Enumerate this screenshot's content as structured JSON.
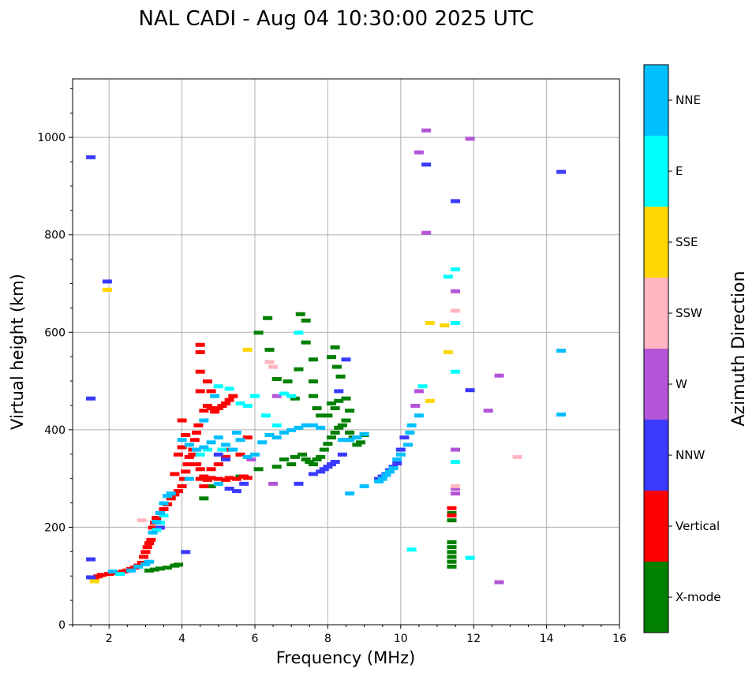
{
  "chart_data": {
    "type": "scatter",
    "title": "NAL CADI - Aug 04 10:30:00 2025 UTC",
    "xlabel": "Frequency (MHz)",
    "ylabel": "Virtual height (km)",
    "xlim": [
      1,
      16
    ],
    "ylim": [
      0,
      1120
    ],
    "xticks": [
      2,
      4,
      6,
      8,
      10,
      12,
      14,
      16
    ],
    "yticks": [
      0,
      200,
      400,
      600,
      800,
      1000
    ],
    "grid": true,
    "colorbar": {
      "title": "Azimuth Direction",
      "categories": [
        {
          "name": "X-mode",
          "color": "#008000"
        },
        {
          "name": "Vertical",
          "color": "#ff0000"
        },
        {
          "name": "NNW",
          "color": "#3a3aff"
        },
        {
          "name": "W",
          "color": "#b455d8"
        },
        {
          "name": "SSW",
          "color": "#ffb6c1"
        },
        {
          "name": "SSE",
          "color": "#ffd700"
        },
        {
          "name": "E",
          "color": "#00ffff"
        },
        {
          "name": "NNE",
          "color": "#00bfff"
        }
      ]
    },
    "series": [
      {
        "name": "X-mode",
        "points": [
          [
            3.1,
            112
          ],
          [
            3.25,
            114
          ],
          [
            3.4,
            116
          ],
          [
            3.6,
            118
          ],
          [
            3.8,
            122
          ],
          [
            3.9,
            124
          ],
          [
            4.6,
            260
          ],
          [
            4.8,
            285
          ],
          [
            5.6,
            305
          ],
          [
            6.1,
            320
          ],
          [
            6.35,
            630
          ],
          [
            6.1,
            600
          ],
          [
            6.4,
            565
          ],
          [
            6.6,
            505
          ],
          [
            6.9,
            500
          ],
          [
            7.1,
            465
          ],
          [
            7.2,
            525
          ],
          [
            7.25,
            638
          ],
          [
            7.4,
            625
          ],
          [
            7.4,
            580
          ],
          [
            7.6,
            545
          ],
          [
            7.6,
            500
          ],
          [
            7.6,
            470
          ],
          [
            7.7,
            445
          ],
          [
            7.8,
            430
          ],
          [
            7.3,
            350
          ],
          [
            7.4,
            340
          ],
          [
            7.5,
            335
          ],
          [
            7.6,
            330
          ],
          [
            7.7,
            340
          ],
          [
            7.8,
            345
          ],
          [
            7.9,
            360
          ],
          [
            8.0,
            372
          ],
          [
            8.1,
            385
          ],
          [
            8.2,
            395
          ],
          [
            8.3,
            405
          ],
          [
            8.4,
            410
          ],
          [
            8.0,
            430
          ],
          [
            8.1,
            455
          ],
          [
            8.2,
            445
          ],
          [
            8.3,
            460
          ],
          [
            8.5,
            420
          ],
          [
            8.5,
            465
          ],
          [
            8.6,
            440
          ],
          [
            8.6,
            395
          ],
          [
            8.7,
            385
          ],
          [
            8.8,
            370
          ],
          [
            8.1,
            550
          ],
          [
            8.2,
            570
          ],
          [
            8.25,
            530
          ],
          [
            8.35,
            510
          ],
          [
            6.6,
            325
          ],
          [
            6.8,
            340
          ],
          [
            7.0,
            330
          ],
          [
            7.1,
            345
          ],
          [
            8.9,
            375
          ],
          [
            9.0,
            390
          ],
          [
            11.4,
            170
          ],
          [
            11.4,
            160
          ],
          [
            11.4,
            150
          ],
          [
            11.4,
            140
          ],
          [
            11.4,
            130
          ],
          [
            11.4,
            120
          ],
          [
            11.4,
            215
          ],
          [
            11.4,
            230
          ]
        ]
      },
      {
        "name": "Vertical",
        "points": [
          [
            1.6,
            95
          ],
          [
            1.7,
            100
          ],
          [
            1.8,
            103
          ],
          [
            2.0,
            105
          ],
          [
            2.1,
            107
          ],
          [
            2.3,
            108
          ],
          [
            2.4,
            110
          ],
          [
            2.5,
            112
          ],
          [
            2.6,
            115
          ],
          [
            2.7,
            118
          ],
          [
            2.8,
            122
          ],
          [
            2.9,
            128
          ],
          [
            2.95,
            140
          ],
          [
            3.0,
            150
          ],
          [
            3.05,
            160
          ],
          [
            3.1,
            168
          ],
          [
            3.15,
            175
          ],
          [
            3.2,
            200
          ],
          [
            3.25,
            210
          ],
          [
            3.3,
            220
          ],
          [
            3.4,
            230
          ],
          [
            3.5,
            238
          ],
          [
            3.6,
            248
          ],
          [
            3.7,
            260
          ],
          [
            3.8,
            268
          ],
          [
            3.9,
            275
          ],
          [
            4.0,
            285
          ],
          [
            4.05,
            300
          ],
          [
            4.1,
            315
          ],
          [
            4.15,
            330
          ],
          [
            4.2,
            345
          ],
          [
            4.3,
            360
          ],
          [
            4.35,
            380
          ],
          [
            4.4,
            395
          ],
          [
            4.45,
            410
          ],
          [
            4.0,
            420
          ],
          [
            3.8,
            310
          ],
          [
            3.9,
            350
          ],
          [
            4.0,
            365
          ],
          [
            4.1,
            390
          ],
          [
            4.5,
            300
          ],
          [
            4.6,
            305
          ],
          [
            4.7,
            298
          ],
          [
            4.8,
            302
          ],
          [
            5.0,
            300
          ],
          [
            5.2,
            298
          ],
          [
            5.3,
            302
          ],
          [
            5.5,
            300
          ],
          [
            5.7,
            305
          ],
          [
            5.8,
            302
          ],
          [
            4.6,
            440
          ],
          [
            4.7,
            450
          ],
          [
            4.8,
            445
          ],
          [
            4.9,
            438
          ],
          [
            5.0,
            445
          ],
          [
            5.1,
            450
          ],
          [
            5.2,
            455
          ],
          [
            5.3,
            462
          ],
          [
            5.4,
            470
          ],
          [
            4.5,
            480
          ],
          [
            4.5,
            520
          ],
          [
            4.5,
            560
          ],
          [
            4.5,
            575
          ],
          [
            4.7,
            500
          ],
          [
            4.8,
            480
          ],
          [
            4.3,
            350
          ],
          [
            4.4,
            330
          ],
          [
            4.6,
            285
          ],
          [
            5.6,
            350
          ],
          [
            5.8,
            385
          ],
          [
            4.5,
            320
          ],
          [
            4.8,
            320
          ],
          [
            5.0,
            330
          ],
          [
            5.2,
            345
          ],
          [
            5.3,
            360
          ],
          [
            11.4,
            240
          ],
          [
            11.4,
            225
          ]
        ]
      },
      {
        "name": "NNW",
        "points": [
          [
            1.5,
            960
          ],
          [
            1.5,
            465
          ],
          [
            1.5,
            135
          ],
          [
            1.5,
            98
          ],
          [
            1.95,
            705
          ],
          [
            3.4,
            200
          ],
          [
            4.1,
            150
          ],
          [
            5.0,
            350
          ],
          [
            5.2,
            340
          ],
          [
            5.3,
            280
          ],
          [
            5.5,
            275
          ],
          [
            5.7,
            290
          ],
          [
            7.6,
            310
          ],
          [
            7.8,
            315
          ],
          [
            7.9,
            320
          ],
          [
            8.0,
            325
          ],
          [
            8.1,
            330
          ],
          [
            8.2,
            335
          ],
          [
            8.4,
            350
          ],
          [
            8.6,
            380
          ],
          [
            9.4,
            300
          ],
          [
            9.5,
            305
          ],
          [
            9.6,
            310
          ],
          [
            9.7,
            318
          ],
          [
            9.8,
            325
          ],
          [
            9.9,
            332
          ],
          [
            10.0,
            360
          ],
          [
            10.1,
            385
          ],
          [
            10.7,
            945
          ],
          [
            11.5,
            870
          ],
          [
            11.9,
            482
          ],
          [
            14.4,
            930
          ],
          [
            8.5,
            545
          ],
          [
            8.3,
            480
          ],
          [
            7.2,
            290
          ]
        ]
      },
      {
        "name": "W",
        "points": [
          [
            10.5,
            970
          ],
          [
            10.7,
            1015
          ],
          [
            10.7,
            805
          ],
          [
            11.5,
            685
          ],
          [
            11.5,
            360
          ],
          [
            11.5,
            280
          ],
          [
            11.5,
            270
          ],
          [
            12.4,
            440
          ],
          [
            12.7,
            512
          ],
          [
            12.7,
            88
          ],
          [
            10.5,
            480
          ],
          [
            10.4,
            450
          ],
          [
            11.9,
            998
          ],
          [
            6.5,
            290
          ],
          [
            5.9,
            340
          ],
          [
            6.6,
            470
          ]
        ]
      },
      {
        "name": "SSW",
        "points": [
          [
            2.9,
            215
          ],
          [
            11.5,
            285
          ],
          [
            13.2,
            345
          ],
          [
            6.4,
            540
          ],
          [
            6.5,
            530
          ],
          [
            11.5,
            645
          ]
        ]
      },
      {
        "name": "SSE",
        "points": [
          [
            1.95,
            688
          ],
          [
            11.3,
            560
          ],
          [
            11.2,
            615
          ],
          [
            10.8,
            620
          ],
          [
            10.8,
            460
          ],
          [
            5.8,
            565
          ],
          [
            1.6,
            90
          ]
        ]
      },
      {
        "name": "E",
        "points": [
          [
            7.2,
            600
          ],
          [
            11.3,
            715
          ],
          [
            11.5,
            730
          ],
          [
            11.5,
            620
          ],
          [
            11.5,
            520
          ],
          [
            11.5,
            335
          ],
          [
            11.9,
            138
          ],
          [
            10.3,
            155
          ],
          [
            10.6,
            490
          ],
          [
            5.0,
            490
          ],
          [
            5.3,
            485
          ],
          [
            5.6,
            455
          ],
          [
            5.8,
            450
          ],
          [
            6.0,
            470
          ],
          [
            6.3,
            430
          ],
          [
            6.6,
            410
          ],
          [
            6.8,
            475
          ],
          [
            7.0,
            470
          ],
          [
            4.5,
            350
          ],
          [
            4.7,
            360
          ],
          [
            5.1,
            360
          ],
          [
            3.3,
            195
          ],
          [
            3.4,
            210
          ],
          [
            3.5,
            225
          ],
          [
            2.3,
            105
          ]
        ]
      },
      {
        "name": "NNE",
        "points": [
          [
            14.4,
            563
          ],
          [
            14.4,
            432
          ],
          [
            3.2,
            190
          ],
          [
            3.3,
            212
          ],
          [
            3.4,
            230
          ],
          [
            3.5,
            250
          ],
          [
            3.6,
            265
          ],
          [
            3.7,
            270
          ],
          [
            4.0,
            380
          ],
          [
            4.2,
            370
          ],
          [
            4.4,
            360
          ],
          [
            4.6,
            365
          ],
          [
            4.8,
            375
          ],
          [
            5.0,
            385
          ],
          [
            5.2,
            370
          ],
          [
            5.4,
            360
          ],
          [
            5.6,
            380
          ],
          [
            5.8,
            345
          ],
          [
            6.0,
            350
          ],
          [
            6.2,
            375
          ],
          [
            6.4,
            390
          ],
          [
            6.6,
            385
          ],
          [
            6.8,
            395
          ],
          [
            7.0,
            400
          ],
          [
            7.2,
            405
          ],
          [
            7.4,
            410
          ],
          [
            7.6,
            410
          ],
          [
            7.8,
            405
          ],
          [
            8.4,
            380
          ],
          [
            8.6,
            380
          ],
          [
            8.8,
            385
          ],
          [
            9.0,
            392
          ],
          [
            9.0,
            285
          ],
          [
            9.4,
            295
          ],
          [
            9.5,
            300
          ],
          [
            9.6,
            308
          ],
          [
            9.7,
            315
          ],
          [
            9.8,
            322
          ],
          [
            9.9,
            340
          ],
          [
            10.0,
            350
          ],
          [
            10.2,
            370
          ],
          [
            10.25,
            395
          ],
          [
            10.3,
            410
          ],
          [
            10.5,
            430
          ],
          [
            8.6,
            270
          ],
          [
            2.1,
            110
          ],
          [
            2.6,
            112
          ],
          [
            3.0,
            125
          ],
          [
            3.1,
            130
          ],
          [
            2.8,
            120
          ],
          [
            4.6,
            420
          ],
          [
            4.9,
            470
          ],
          [
            5.5,
            395
          ],
          [
            5.0,
            290
          ],
          [
            4.2,
            300
          ]
        ]
      }
    ]
  }
}
